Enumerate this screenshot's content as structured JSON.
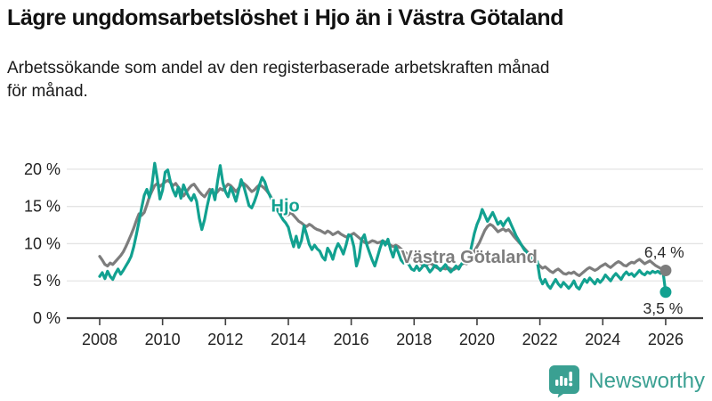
{
  "header": {
    "title": "Lägre ungdomsarbetslöshet i Hjo än i Västra Götaland",
    "subtitle_lines": [
      "Arbetssökande som andel av den registerbaserade arbetskraften månad",
      "för månad."
    ]
  },
  "footer": {
    "brand": "Newsworthy",
    "brand_color": "#3aa092"
  },
  "colors": {
    "hjo_line": "#12a190",
    "vastra_line": "#7d7d7d",
    "grid": "#e4e4e4",
    "axis": "#3f3f3f",
    "tick_text": "#222222",
    "end_label_text": "#2b2b2b",
    "background": "#ffffff"
  },
  "chart_data": {
    "type": "line",
    "title": "Lägre ungdomsarbetslöshet i Hjo än i Västra Götaland",
    "subtitle": "Arbetssökande som andel av den registerbaserade arbetskraften månad för månad.",
    "xlabel": "",
    "ylabel": "",
    "x_unit": "monthly, decimal years",
    "x_start": 2008.0,
    "x_step_months": 1,
    "xlim": [
      2007.9,
      2026.7
    ],
    "ylim": [
      0,
      21.8
    ],
    "grid": true,
    "legend_position": "inline-labels",
    "x_ticks": [
      {
        "v": 2008,
        "label": "2008"
      },
      {
        "v": 2010,
        "label": "2010"
      },
      {
        "v": 2012,
        "label": "2012"
      },
      {
        "v": 2014,
        "label": "2014"
      },
      {
        "v": 2016,
        "label": "2016"
      },
      {
        "v": 2018,
        "label": "2018"
      },
      {
        "v": 2020,
        "label": "2020"
      },
      {
        "v": 2022,
        "label": "2022"
      },
      {
        "v": 2024,
        "label": "2024"
      },
      {
        "v": 2026,
        "label": "2026"
      }
    ],
    "y_ticks": [
      {
        "v": 0,
        "label": "0 %"
      },
      {
        "v": 5,
        "label": "5 %"
      },
      {
        "v": 10,
        "label": "10 %"
      },
      {
        "v": 15,
        "label": "15 %"
      },
      {
        "v": 20,
        "label": "20 %"
      }
    ],
    "series": [
      {
        "name": "Västra Götaland",
        "color": "#7d7d7d",
        "end_value": 6.4,
        "end_label": {
          "text": "6,4 %",
          "x": 2025.32,
          "y": 8.15
        },
        "label_at": {
          "x": 2017.58,
          "y": 7.4
        },
        "values": [
          8.3,
          7.8,
          7.2,
          7.0,
          7.4,
          7.2,
          7.6,
          8.0,
          8.4,
          8.9,
          9.6,
          10.4,
          11.2,
          12.1,
          13.1,
          14.0,
          13.8,
          14.2,
          15.2,
          16.3,
          17.1,
          17.8,
          18.1,
          17.7,
          18.0,
          18.3,
          18.5,
          18.2,
          17.8,
          18.1,
          17.6,
          17.1,
          16.4,
          16.9,
          17.4,
          17.8,
          18.0,
          17.5,
          17.0,
          16.6,
          16.3,
          16.8,
          17.3,
          17.0,
          16.6,
          17.0,
          17.4,
          17.2,
          17.6,
          18.0,
          17.8,
          17.4,
          17.0,
          17.4,
          17.9,
          18.1,
          17.8,
          17.4,
          17.0,
          17.2,
          17.6,
          17.9,
          17.7,
          17.4,
          17.0,
          16.5,
          15.8,
          15.2,
          14.6,
          14.2,
          13.9,
          13.8,
          13.9,
          14.2,
          13.8,
          13.4,
          13.0,
          12.8,
          12.5,
          12.3,
          12.6,
          12.4,
          12.1,
          11.9,
          11.8,
          11.6,
          11.4,
          11.7,
          11.5,
          11.2,
          11.4,
          11.6,
          11.3,
          11.1,
          10.9,
          11.0,
          11.2,
          11.4,
          11.1,
          10.8,
          10.5,
          10.2,
          10.0,
          10.2,
          10.4,
          10.3,
          10.1,
          10.2,
          10.4,
          10.2,
          10.0,
          9.8,
          9.6,
          9.8,
          9.6,
          9.3,
          9.0,
          8.7,
          8.4,
          8.2,
          8.0,
          7.8,
          7.5,
          7.2,
          7.0,
          7.2,
          7.4,
          7.2,
          6.9,
          6.7,
          6.6,
          6.7,
          6.6,
          6.8,
          6.6,
          6.5,
          6.7,
          6.9,
          7.2,
          7.4,
          7.3,
          7.6,
          8.2,
          9.0,
          9.6,
          10.2,
          11.0,
          11.8,
          12.3,
          12.6,
          12.4,
          12.0,
          11.6,
          11.8,
          12.0,
          11.7,
          11.9,
          11.5,
          11.0,
          10.6,
          10.2,
          9.8,
          9.4,
          9.0,
          8.6,
          8.2,
          7.8,
          7.4,
          7.0,
          6.7,
          6.9,
          6.6,
          6.3,
          6.1,
          6.4,
          6.6,
          6.3,
          6.0,
          5.9,
          6.1,
          6.0,
          6.2,
          5.9,
          5.7,
          6.0,
          6.3,
          6.6,
          6.8,
          6.6,
          6.4,
          6.6,
          6.9,
          7.1,
          7.3,
          7.0,
          6.8,
          7.1,
          7.4,
          7.6,
          7.4,
          7.1,
          7.0,
          7.3,
          7.5,
          7.4,
          7.7,
          7.9,
          7.6,
          7.3,
          7.5,
          7.7,
          7.4,
          7.1,
          6.9,
          6.7,
          6.6,
          6.4
        ]
      },
      {
        "name": "Hjo",
        "color": "#12a190",
        "end_value": 3.5,
        "end_label": {
          "text": "3,5 %",
          "x": 2025.28,
          "y": 0.62
        },
        "label_at": {
          "x": 2013.45,
          "y": 14.3
        },
        "values": [
          5.6,
          6.1,
          5.3,
          6.3,
          5.6,
          5.2,
          6.0,
          6.6,
          5.9,
          6.4,
          7.0,
          7.6,
          8.3,
          9.6,
          11.2,
          13.0,
          14.8,
          16.5,
          17.3,
          16.2,
          18.0,
          20.8,
          18.7,
          16.0,
          17.2,
          19.6,
          19.9,
          18.3,
          17.2,
          16.4,
          17.6,
          16.1,
          17.9,
          17.0,
          16.3,
          15.8,
          16.6,
          15.7,
          13.4,
          11.9,
          13.2,
          15.0,
          16.6,
          17.3,
          15.9,
          18.4,
          20.5,
          18.2,
          17.0,
          16.3,
          17.6,
          16.7,
          15.7,
          17.1,
          18.6,
          17.7,
          16.4,
          15.1,
          14.8,
          15.6,
          16.6,
          17.9,
          18.9,
          18.3,
          17.2,
          16.4,
          15.7,
          15.0,
          14.4,
          13.8,
          13.2,
          12.8,
          12.2,
          10.8,
          9.6,
          11.0,
          9.5,
          10.4,
          12.4,
          11.2,
          9.9,
          9.2,
          9.8,
          9.3,
          9.0,
          8.2,
          7.8,
          9.4,
          8.8,
          7.9,
          9.2,
          10.0,
          9.4,
          8.6,
          9.8,
          11.2,
          11.0,
          9.6,
          7.0,
          8.2,
          10.6,
          11.2,
          9.8,
          8.8,
          7.8,
          7.0,
          8.2,
          9.4,
          10.4,
          9.8,
          10.6,
          9.2,
          8.2,
          9.6,
          8.8,
          7.8,
          7.4,
          8.0,
          7.2,
          6.6,
          6.4,
          7.0,
          6.4,
          6.8,
          7.4,
          6.8,
          6.2,
          6.6,
          7.2,
          6.8,
          6.4,
          6.8,
          7.2,
          6.6,
          6.2,
          6.6,
          7.0,
          6.6,
          7.2,
          7.8,
          7.4,
          8.2,
          9.8,
          11.4,
          12.6,
          13.4,
          14.6,
          13.8,
          13.0,
          13.6,
          14.2,
          13.4,
          12.6,
          13.0,
          12.4,
          13.0,
          13.4,
          12.6,
          11.8,
          11.0,
          10.4,
          9.8,
          9.2,
          8.8,
          8.4,
          8.0,
          7.8,
          7.6,
          5.4,
          4.6,
          5.2,
          4.4,
          4.0,
          4.6,
          5.2,
          4.6,
          4.2,
          4.8,
          4.4,
          4.0,
          4.4,
          5.0,
          4.2,
          3.9,
          4.6,
          5.2,
          4.8,
          5.4,
          5.0,
          4.6,
          5.2,
          4.8,
          5.2,
          5.8,
          5.4,
          5.0,
          5.6,
          6.0,
          5.6,
          5.2,
          5.8,
          6.2,
          5.8,
          6.0,
          5.6,
          6.0,
          6.4,
          6.0,
          5.8,
          6.2,
          6.0,
          6.3,
          6.1,
          6.3,
          6.0,
          6.2,
          3.5
        ]
      }
    ]
  }
}
